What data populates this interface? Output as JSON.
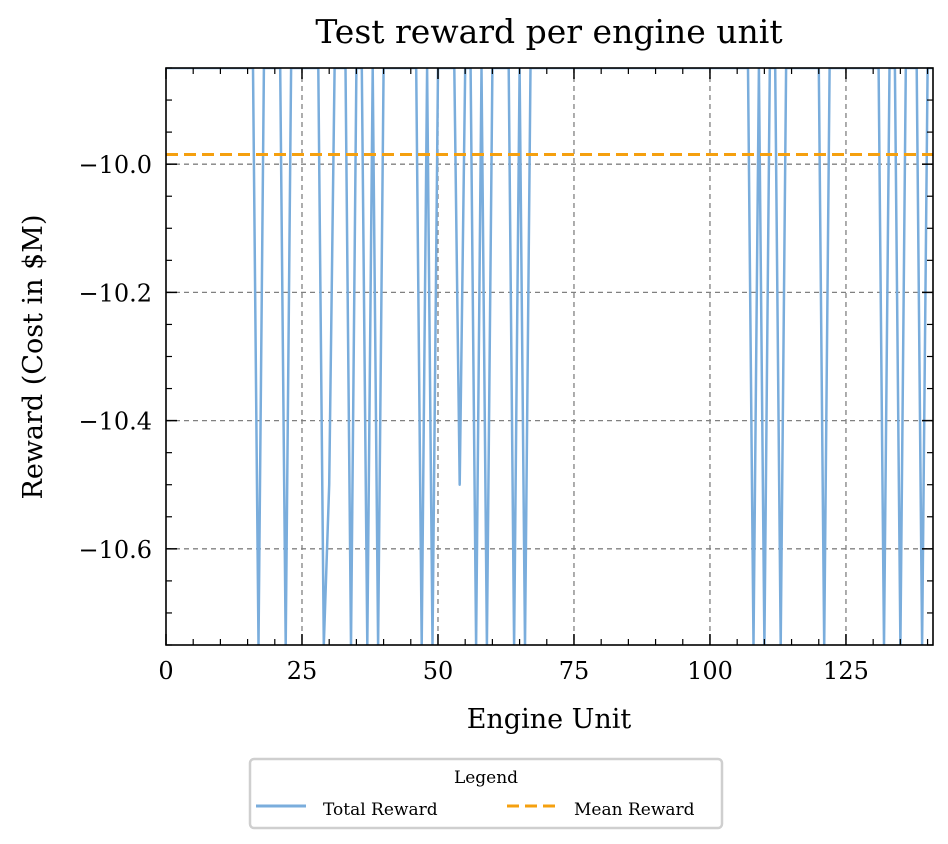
{
  "chart_data": {
    "type": "line",
    "title": "Test reward per engine unit",
    "xlabel": "Engine Unit",
    "ylabel": "Reward (Cost in $M)",
    "xlim": [
      0,
      141
    ],
    "ylim": [
      -10.75,
      -9.85
    ],
    "x_ticks": [
      0,
      25,
      50,
      75,
      100,
      125
    ],
    "x_tick_labels": [
      "0",
      "25",
      "50",
      "75",
      "100",
      "125"
    ],
    "y_ticks": [
      -10.0,
      -10.2,
      -10.4,
      -10.6
    ],
    "y_tick_labels": [
      "−10.0",
      "−10.2",
      "−10.4",
      "−10.6"
    ],
    "grid": true,
    "legend": {
      "title": "Legend",
      "placement": "below-center",
      "columns": 2
    },
    "series": [
      {
        "name": "Total Reward",
        "style": "solid",
        "color": "#7aaddc",
        "x": [
          0,
          16,
          17,
          18,
          19,
          20,
          21,
          22,
          23,
          24,
          25,
          26,
          27,
          28,
          29,
          30,
          31,
          32,
          33,
          34,
          35,
          36,
          37,
          38,
          39,
          40,
          41,
          42,
          43,
          44,
          45,
          46,
          47,
          48,
          49,
          50,
          51,
          52,
          53,
          54,
          55,
          56,
          57,
          58,
          59,
          60,
          61,
          62,
          63,
          64,
          65,
          66,
          67,
          68,
          69,
          70,
          71,
          72,
          73,
          74,
          75,
          76,
          77,
          78,
          79,
          80,
          81,
          82,
          83,
          84,
          85,
          86,
          87,
          88,
          89,
          90,
          91,
          92,
          93,
          94,
          95,
          96,
          97,
          98,
          99,
          100,
          101,
          102,
          103,
          104,
          105,
          106,
          107,
          108,
          109,
          110,
          111,
          112,
          113,
          114,
          115,
          116,
          117,
          118,
          119,
          120,
          121,
          122,
          123,
          124,
          125,
          126,
          127,
          128,
          129,
          130,
          131,
          132,
          133,
          134,
          135,
          136,
          137,
          138,
          139,
          140,
          141
        ],
        "values": [
          -9.85,
          -9.85,
          -10.75,
          -9.85,
          -9.85,
          -9.85,
          -9.85,
          -10.75,
          -9.85,
          -9.85,
          -9.85,
          -9.85,
          -9.85,
          -9.85,
          -10.75,
          -10.5,
          -9.85,
          -9.85,
          -9.85,
          -10.75,
          -9.85,
          -9.85,
          -10.75,
          -9.85,
          -10.75,
          -9.85,
          -9.85,
          -9.85,
          -9.85,
          -9.85,
          -9.85,
          -9.85,
          -10.75,
          -9.85,
          -10.75,
          -9.85,
          -9.85,
          -9.85,
          -9.85,
          -10.5,
          -9.85,
          -9.85,
          -10.75,
          -9.85,
          -10.75,
          -9.85,
          -9.85,
          -9.85,
          -9.85,
          -10.75,
          -9.85,
          -10.75,
          -9.85,
          -9.85,
          -9.85,
          -9.85,
          -9.85,
          -9.85,
          -9.85,
          -9.85,
          -9.85,
          -9.85,
          -9.85,
          -9.85,
          -9.85,
          -9.85,
          -9.85,
          -9.85,
          -9.85,
          -9.85,
          -9.85,
          -9.85,
          -9.85,
          -9.85,
          -9.85,
          -9.85,
          -9.85,
          -9.85,
          -9.85,
          -9.85,
          -9.85,
          -9.85,
          -9.85,
          -9.85,
          -9.85,
          -9.85,
          -9.85,
          -9.85,
          -9.85,
          -9.85,
          -9.85,
          -9.85,
          -9.85,
          -10.75,
          -9.85,
          -10.75,
          -9.85,
          -9.85,
          -10.75,
          -9.85,
          -9.85,
          -9.85,
          -9.85,
          -9.85,
          -9.85,
          -9.85,
          -10.75,
          -9.85,
          -9.85,
          -9.85,
          -9.85,
          -9.85,
          -9.85,
          -9.85,
          -9.85,
          -9.85,
          -9.85,
          -10.75,
          -9.85,
          -9.85,
          -10.75,
          -9.85,
          -9.85,
          -9.85,
          -10.75,
          -9.85,
          -9.85
        ]
      },
      {
        "name": "Mean Reward",
        "style": "dashed",
        "color": "#f5a00f",
        "x": [
          0,
          141
        ],
        "values": [
          -9.985,
          -9.985
        ]
      }
    ]
  }
}
